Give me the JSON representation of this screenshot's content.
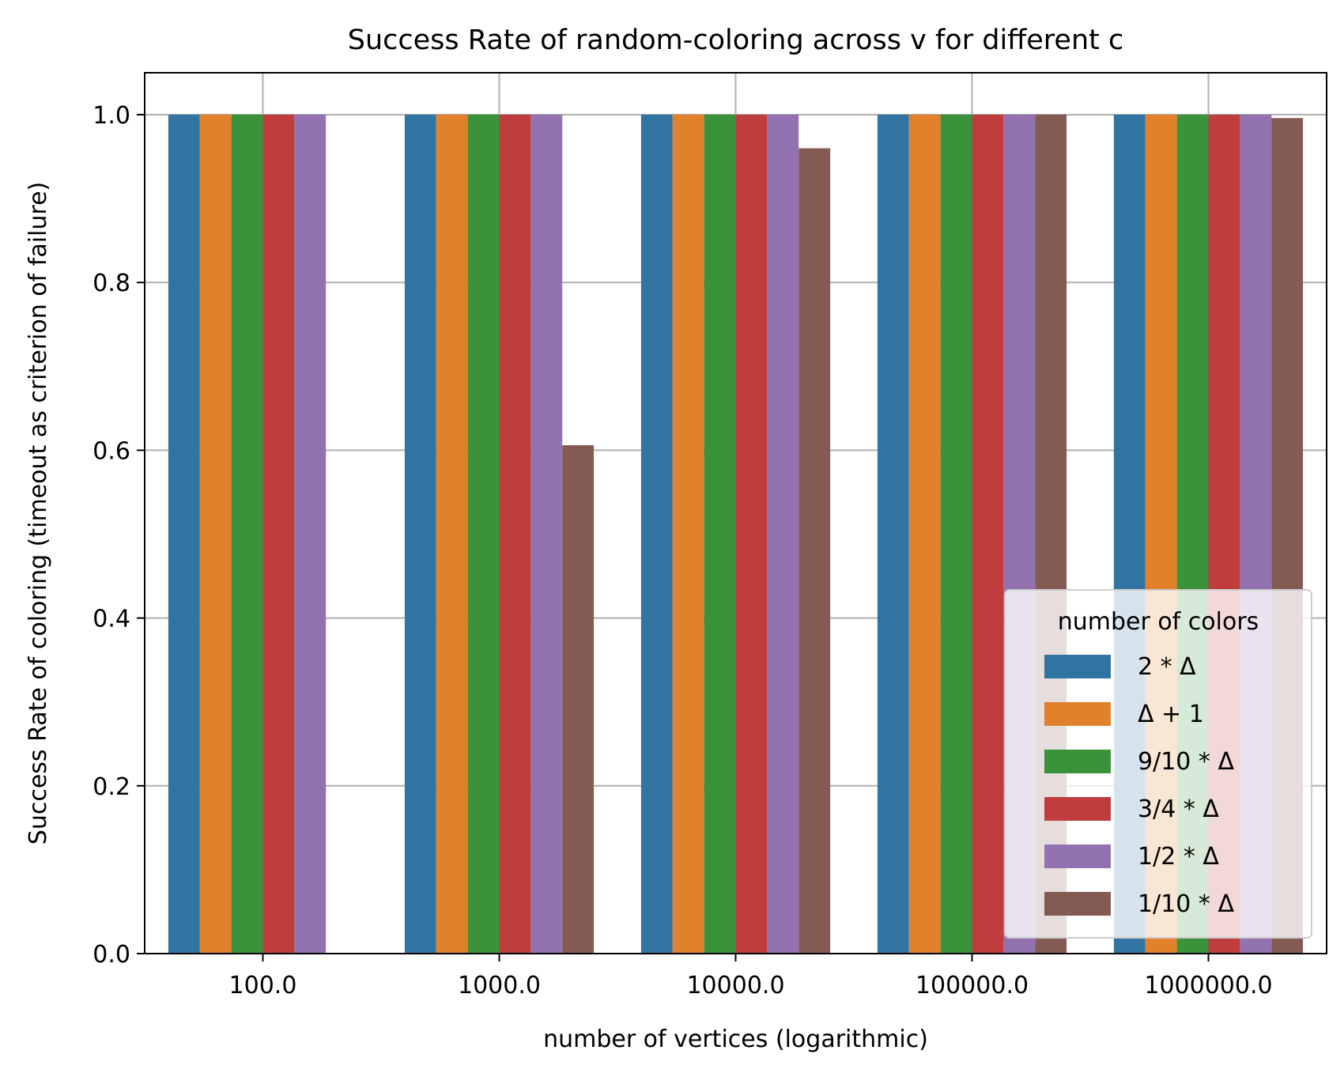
{
  "chart_data": {
    "type": "bar",
    "title": "Success Rate of random-coloring across v for different c",
    "xlabel": "number of vertices (logarithmic)",
    "ylabel": "Success Rate of coloring (timeout as criterion of failure)",
    "categories": [
      "100.0",
      "1000.0",
      "10000.0",
      "100000.0",
      "1000000.0"
    ],
    "ylim": [
      0.0,
      1.05
    ],
    "yticks": [
      "0.0",
      "0.2",
      "0.4",
      "0.6",
      "0.8",
      "1.0"
    ],
    "grid": true,
    "legend": {
      "title": "number of colors",
      "placement": "lower-right"
    },
    "series": [
      {
        "name": "2 * Δ",
        "color": "#3274a1",
        "values": [
          1.0,
          1.0,
          1.0,
          1.0,
          1.0
        ]
      },
      {
        "name": "Δ + 1",
        "color": "#e1812c",
        "values": [
          1.0,
          1.0,
          1.0,
          1.0,
          1.0
        ]
      },
      {
        "name": "9/10 * Δ",
        "color": "#3a923a",
        "values": [
          1.0,
          1.0,
          1.0,
          1.0,
          1.0
        ]
      },
      {
        "name": "3/4 * Δ",
        "color": "#c03d3e",
        "values": [
          1.0,
          1.0,
          1.0,
          1.0,
          1.0
        ]
      },
      {
        "name": "1/2 * Δ",
        "color": "#9372b2",
        "values": [
          1.0,
          1.0,
          1.0,
          1.0,
          1.0
        ]
      },
      {
        "name": "1/10 * Δ",
        "color": "#845b53",
        "values": [
          null,
          0.606,
          0.96,
          1.0,
          0.996
        ]
      }
    ]
  }
}
